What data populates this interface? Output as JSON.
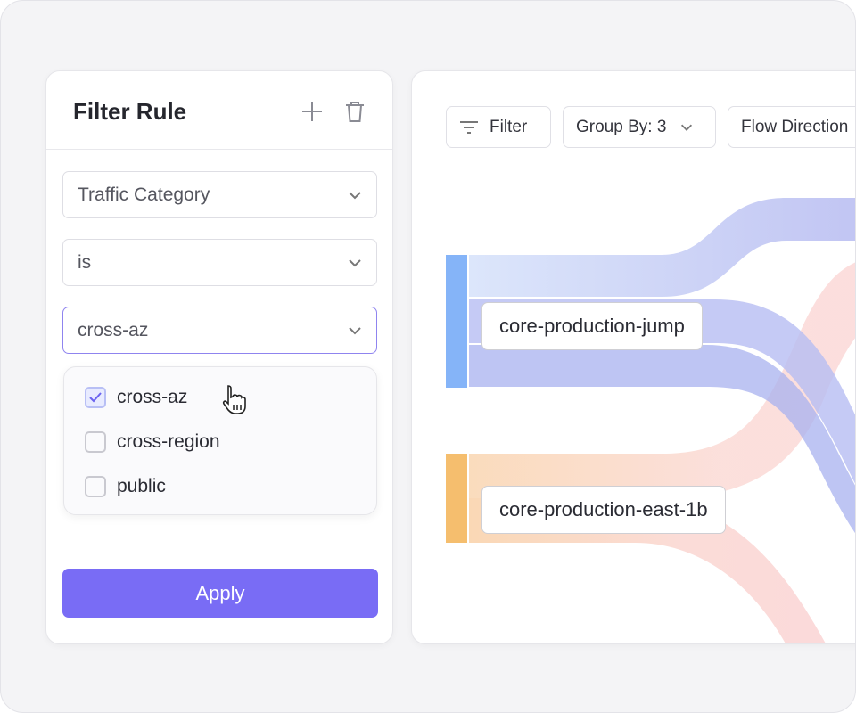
{
  "filter_panel": {
    "title": "Filter Rule",
    "add_icon": "plus-icon",
    "delete_icon": "trash-icon",
    "field_select": "Traffic Category",
    "operator_select": "is",
    "value_select": "cross-az",
    "options": [
      {
        "label": "cross-az",
        "checked": true
      },
      {
        "label": "cross-region",
        "checked": false
      },
      {
        "label": "public",
        "checked": false
      }
    ],
    "apply_label": "Apply",
    "accent": "#796cf5"
  },
  "toolbar": {
    "filter_label": "Filter",
    "group_by_label": "Group By: 3",
    "flow_direction_label": "Flow Direction"
  },
  "sankey": {
    "nodes": [
      {
        "label": "core-production-jump",
        "color": "#85b4f8"
      },
      {
        "label": "core-production-east-1b",
        "color": "#f5be6e"
      }
    ]
  }
}
